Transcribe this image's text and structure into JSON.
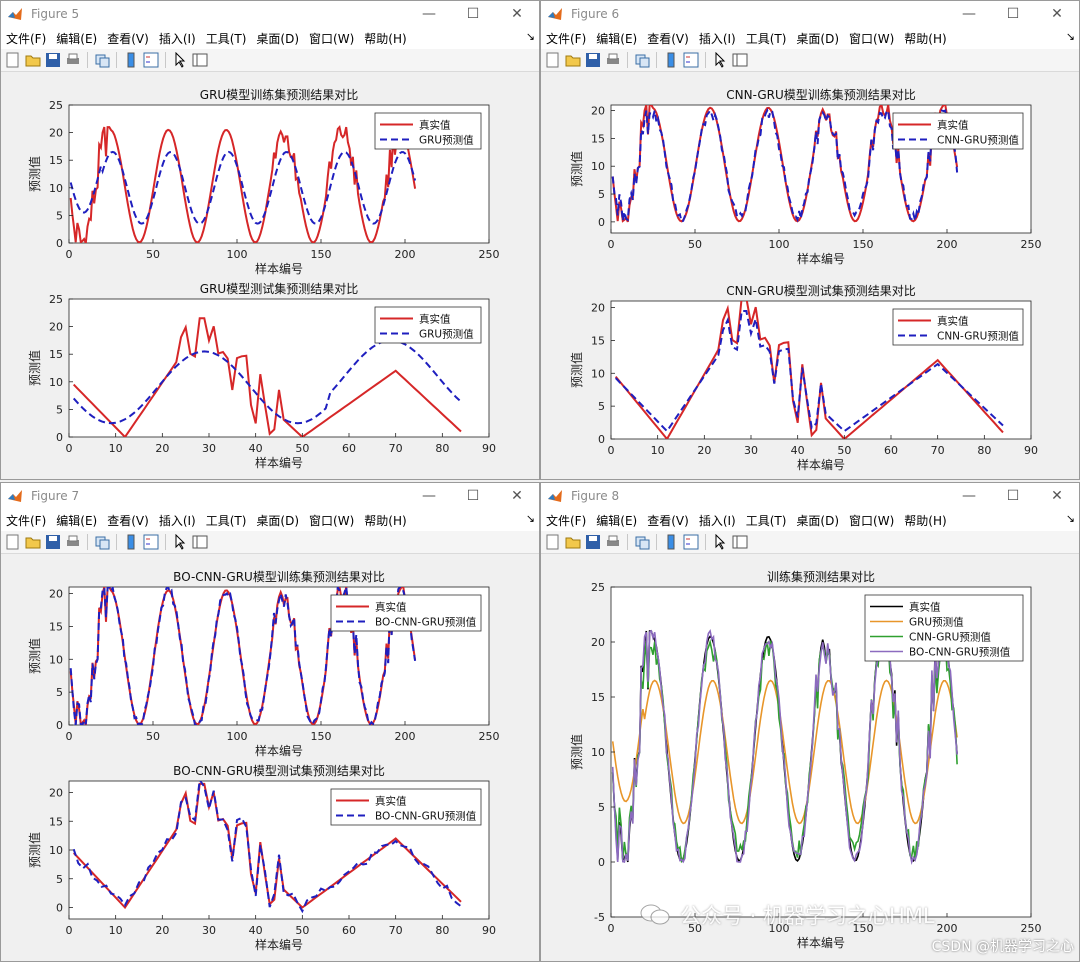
{
  "menus": [
    "文件(F)",
    "编辑(E)",
    "查看(V)",
    "插入(I)",
    "工具(T)",
    "桌面(D)",
    "窗口(W)",
    "帮助(H)"
  ],
  "watermark": "公众号 · 机器学习之心HML",
  "csdn": "CSDN @机器学习之心",
  "colors": {
    "true": "#d62728",
    "pred": "#1f1fbf",
    "black": "#000000",
    "orange": "#e8962a",
    "green": "#2fa02f",
    "purple": "#8c6bbf"
  },
  "windows": [
    {
      "title": "Figure 5",
      "charts": [
        {
          "type": "line",
          "title": "GRU模型训练集预测结果对比",
          "xlabel": "样本编号",
          "ylabel": "预测值",
          "xlim": [
            0,
            250
          ],
          "ylim": [
            0,
            25
          ],
          "xticks": [
            0,
            50,
            100,
            150,
            200,
            250
          ],
          "yticks": [
            0,
            5,
            10,
            15,
            20,
            25
          ],
          "series": [
            {
              "name": "真实值",
              "gen": "train_true",
              "style": "true"
            },
            {
              "name": "GRU预测值",
              "gen": "train_gru",
              "style": "pred"
            }
          ]
        },
        {
          "type": "line",
          "title": "GRU模型测试集预测结果对比",
          "xlabel": "样本编号",
          "ylabel": "预测值",
          "xlim": [
            0,
            90
          ],
          "ylim": [
            0,
            25
          ],
          "xticks": [
            0,
            10,
            20,
            30,
            40,
            50,
            60,
            70,
            80,
            90
          ],
          "yticks": [
            0,
            5,
            10,
            15,
            20,
            25
          ],
          "series": [
            {
              "name": "真实值",
              "gen": "test_true",
              "style": "true"
            },
            {
              "name": "GRU预测值",
              "gen": "test_gru",
              "style": "pred"
            }
          ]
        }
      ]
    },
    {
      "title": "Figure 6",
      "charts": [
        {
          "type": "line",
          "title": "CNN-GRU模型训练集预测结果对比",
          "xlabel": "样本编号",
          "ylabel": "预测值",
          "xlim": [
            0,
            250
          ],
          "ylim": [
            -2,
            21
          ],
          "xticks": [
            0,
            50,
            100,
            150,
            200,
            250
          ],
          "yticks": [
            0,
            5,
            10,
            15,
            20
          ],
          "series": [
            {
              "name": "真实值",
              "gen": "train_true",
              "style": "true"
            },
            {
              "name": "CNN-GRU预测值",
              "gen": "train_cnn",
              "style": "pred"
            }
          ]
        },
        {
          "type": "line",
          "title": "CNN-GRU模型测试集预测结果对比",
          "xlabel": "样本编号",
          "ylabel": "预测值",
          "xlim": [
            0,
            90
          ],
          "ylim": [
            0,
            21
          ],
          "xticks": [
            0,
            10,
            20,
            30,
            40,
            50,
            60,
            70,
            80,
            90
          ],
          "yticks": [
            0,
            5,
            10,
            15,
            20
          ],
          "series": [
            {
              "name": "真实值",
              "gen": "test_true",
              "style": "true"
            },
            {
              "name": "CNN-GRU预测值",
              "gen": "test_cnn",
              "style": "pred"
            }
          ]
        }
      ]
    },
    {
      "title": "Figure 7",
      "charts": [
        {
          "type": "line",
          "title": "BO-CNN-GRU模型训练集预测结果对比",
          "xlabel": "样本编号",
          "ylabel": "预测值",
          "xlim": [
            0,
            250
          ],
          "ylim": [
            0,
            21
          ],
          "xticks": [
            0,
            50,
            100,
            150,
            200,
            250
          ],
          "yticks": [
            0,
            5,
            10,
            15,
            20
          ],
          "series": [
            {
              "name": "真实值",
              "gen": "train_true",
              "style": "true"
            },
            {
              "name": "BO-CNN-GRU预测值",
              "gen": "train_bo",
              "style": "pred"
            }
          ]
        },
        {
          "type": "line",
          "title": "BO-CNN-GRU模型测试集预测结果对比",
          "xlabel": "样本编号",
          "ylabel": "预测值",
          "xlim": [
            0,
            90
          ],
          "ylim": [
            -2,
            22
          ],
          "xticks": [
            0,
            10,
            20,
            30,
            40,
            50,
            60,
            70,
            80,
            90
          ],
          "yticks": [
            0,
            5,
            10,
            15,
            20
          ],
          "series": [
            {
              "name": "真实值",
              "gen": "test_true",
              "style": "true"
            },
            {
              "name": "BO-CNN-GRU预测值",
              "gen": "test_bo",
              "style": "pred"
            }
          ]
        }
      ]
    },
    {
      "title": "Figure 8",
      "charts": [
        {
          "type": "line",
          "title": "训练集预测结果对比",
          "xlabel": "样本编号",
          "ylabel": "预测值",
          "xlim": [
            0,
            250
          ],
          "ylim": [
            -5,
            25
          ],
          "xticks": [
            0,
            50,
            100,
            150,
            200,
            250
          ],
          "yticks": [
            -5,
            0,
            5,
            10,
            15,
            20,
            25
          ],
          "series": [
            {
              "name": "真实值",
              "gen": "train_true",
              "style": "black"
            },
            {
              "name": "GRU预测值",
              "gen": "train_gru",
              "style": "orange"
            },
            {
              "name": "CNN-GRU预测值",
              "gen": "train_cnn",
              "style": "green"
            },
            {
              "name": "BO-CNN-GRU预测值",
              "gen": "train_bo",
              "style": "purple"
            }
          ]
        }
      ]
    }
  ]
}
